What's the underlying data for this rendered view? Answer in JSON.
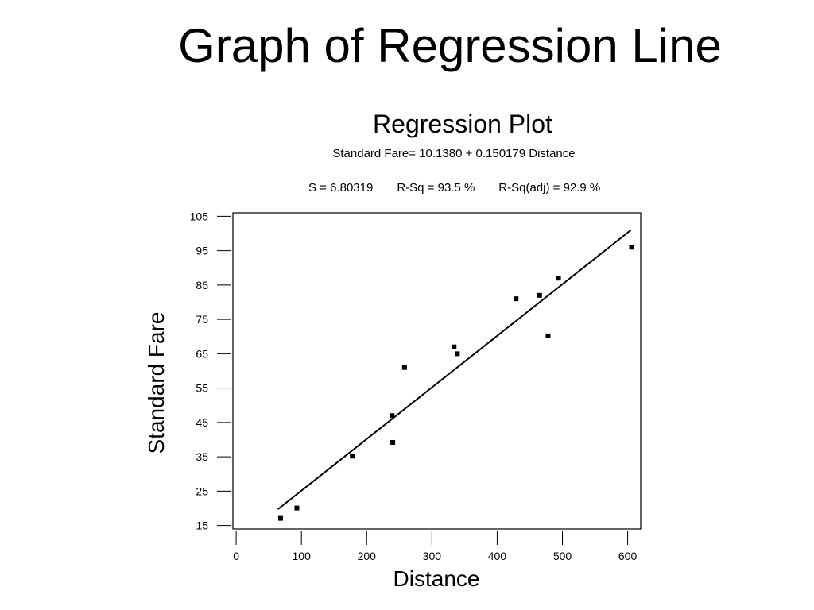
{
  "slide": {
    "title": "Graph of Regression Line"
  },
  "chart_data": {
    "type": "scatter",
    "title": "Regression Plot",
    "subtitle": "Standard Fare= 10.1380 + 0.150179 Distance",
    "stats": {
      "s": "S = 6.80319",
      "r_sq": "R-Sq = 93.5 %",
      "r_sq_adj": "R-Sq(adj) = 92.9 %"
    },
    "xlabel": "Distance",
    "ylabel": "Standard Fare",
    "x_ticks": [
      0,
      100,
      200,
      300,
      400,
      500,
      600
    ],
    "y_ticks": [
      15,
      25,
      35,
      45,
      55,
      65,
      75,
      85,
      95,
      105
    ],
    "xlim": [
      -5,
      620
    ],
    "ylim": [
      14,
      106
    ],
    "grid": false,
    "points": [
      {
        "x": 68,
        "y": 17.1
      },
      {
        "x": 93,
        "y": 20.1
      },
      {
        "x": 178,
        "y": 35.2
      },
      {
        "x": 239,
        "y": 47.0
      },
      {
        "x": 240,
        "y": 39.2
      },
      {
        "x": 258,
        "y": 61.0
      },
      {
        "x": 334,
        "y": 67.0
      },
      {
        "x": 339,
        "y": 65.0
      },
      {
        "x": 429,
        "y": 81.0
      },
      {
        "x": 465,
        "y": 82.0
      },
      {
        "x": 478,
        "y": 70.2
      },
      {
        "x": 494,
        "y": 87.0
      },
      {
        "x": 606,
        "y": 96.0
      }
    ],
    "regression": {
      "intercept": 10.138,
      "slope": 0.150179,
      "x_range": [
        64,
        605
      ]
    }
  }
}
